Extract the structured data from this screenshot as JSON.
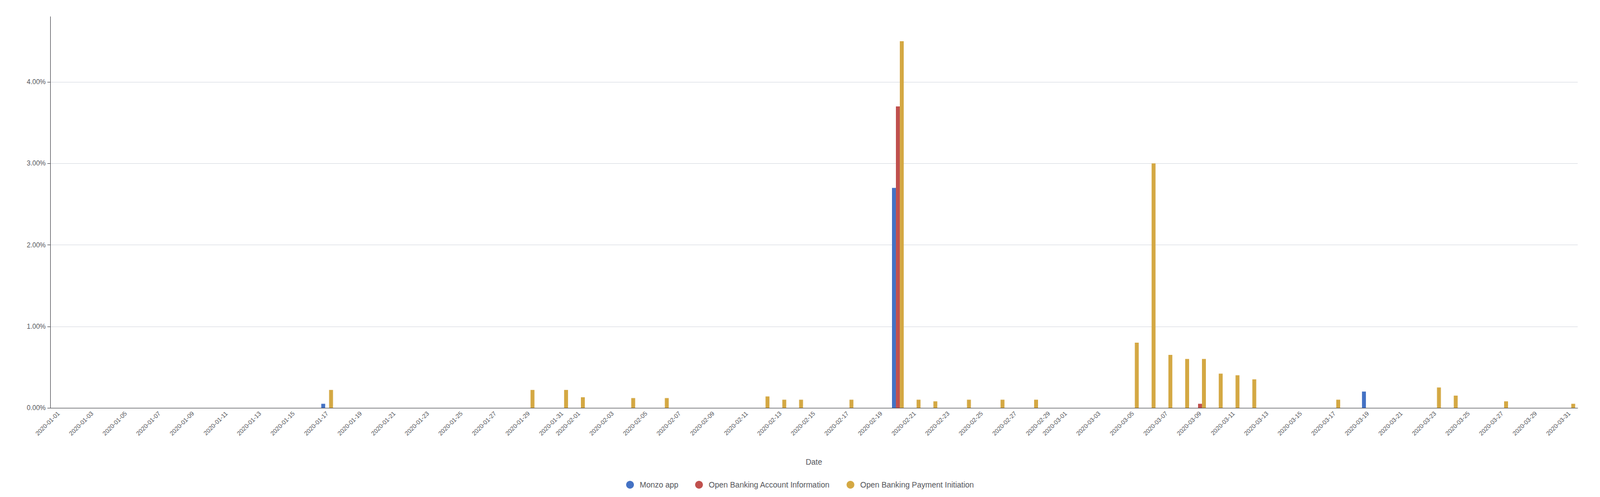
{
  "chart_data": {
    "type": "bar",
    "xlabel": "Date",
    "categories": [
      "2020-01-01",
      null,
      "2020-01-03",
      null,
      "2020-01-05",
      null,
      "2020-01-07",
      null,
      "2020-01-09",
      null,
      "2020-01-11",
      null,
      "2020-01-13",
      null,
      "2020-01-15",
      null,
      "2020-01-17",
      null,
      "2020-01-19",
      null,
      "2020-01-21",
      null,
      "2020-01-23",
      null,
      "2020-01-25",
      null,
      "2020-01-27",
      null,
      "2020-01-29",
      null,
      "2020-01-31",
      "2020-02-01",
      null,
      "2020-02-03",
      null,
      "2020-02-05",
      null,
      "2020-02-07",
      null,
      "2020-02-09",
      null,
      "2020-02-11",
      null,
      "2020-02-13",
      null,
      "2020-02-15",
      null,
      "2020-02-17",
      null,
      "2020-02-19",
      null,
      "2020-02-21",
      null,
      "2020-02-23",
      null,
      "2020-02-25",
      null,
      "2020-02-27",
      null,
      "2020-02-29",
      "2020-03-01",
      null,
      "2020-03-03",
      null,
      "2020-03-05",
      null,
      "2020-03-07",
      null,
      "2020-03-09",
      null,
      "2020-03-11",
      null,
      "2020-03-13",
      null,
      "2020-03-15",
      null,
      "2020-03-17",
      null,
      "2020-03-19",
      null,
      "2020-03-21",
      null,
      "2020-03-23",
      null,
      "2020-03-25",
      null,
      "2020-03-27",
      null,
      "2020-03-29",
      null,
      "2020-03-31"
    ],
    "series": [
      {
        "name": "Monzo app",
        "color": "#4472c4",
        "values": [
          0,
          0,
          0,
          0,
          0,
          0,
          0,
          0,
          0,
          0,
          0,
          0,
          0,
          0,
          0,
          0,
          0.0005,
          0,
          0,
          0,
          0,
          0,
          0,
          0,
          0,
          0,
          0,
          0,
          0,
          0,
          0,
          0,
          0,
          0,
          0,
          0,
          0,
          0,
          0,
          0,
          0,
          0,
          0,
          0,
          0,
          0,
          0,
          0,
          0,
          0,
          0.027,
          0,
          0,
          0,
          0,
          0,
          0,
          0,
          0,
          0,
          0,
          0,
          0,
          0,
          0,
          0,
          0,
          0,
          0,
          0,
          0,
          0,
          0,
          0,
          0,
          0,
          0,
          0,
          0.002,
          0,
          0,
          0,
          0,
          0,
          0,
          0,
          0,
          0,
          0,
          0,
          0
        ]
      },
      {
        "name": "Open Banking Account Information",
        "color": "#c0504d",
        "values": [
          0,
          0,
          0,
          0,
          0,
          0,
          0,
          0,
          0,
          0,
          0,
          0,
          0,
          0,
          0,
          0,
          0,
          0,
          0,
          0,
          0,
          0,
          0,
          0,
          0,
          0,
          0,
          0,
          0,
          0,
          0,
          0,
          0,
          0,
          0,
          0,
          0,
          0,
          0,
          0,
          0,
          0,
          0,
          0,
          0,
          0,
          0,
          0,
          0,
          0,
          0.037,
          0,
          0,
          0,
          0,
          0,
          0,
          0,
          0,
          0,
          0,
          0,
          0,
          0,
          0,
          0,
          0,
          0,
          0.0005,
          0,
          0,
          0,
          0,
          0,
          0,
          0,
          0,
          0,
          0,
          0,
          0,
          0,
          0,
          0,
          0,
          0,
          0,
          0,
          0,
          0,
          0
        ]
      },
      {
        "name": "Open Banking Payment Initiation",
        "color": "#D4A843",
        "values": [
          0,
          0,
          0,
          0,
          0,
          0,
          0,
          0,
          0,
          0,
          0,
          0,
          0,
          0,
          0,
          0,
          0.0022,
          0,
          0,
          0,
          0,
          0,
          0,
          0,
          0,
          0,
          0,
          0,
          0.0022,
          0,
          0.0022,
          0.0013,
          0,
          0,
          0.0012,
          0,
          0.0012,
          0,
          0,
          0,
          0,
          0,
          0.0014,
          0.001,
          0.001,
          0,
          0,
          0.001,
          0,
          0,
          0.045,
          0.001,
          0.0008,
          0,
          0.001,
          0,
          0.001,
          0,
          0.001,
          0,
          0,
          0,
          0,
          0,
          0.008,
          0.03,
          0.0065,
          0.006,
          0.006,
          0.0042,
          0.004,
          0.0035,
          0,
          0,
          0,
          0,
          0.001,
          0,
          0,
          0,
          0,
          0,
          0.0025,
          0.0015,
          0,
          0,
          0.0008,
          0,
          0,
          0,
          0.0005
        ]
      }
    ],
    "ylim": [
      0,
      0.048
    ],
    "yticks": [
      {
        "value": 0.0,
        "label": "0.00%"
      },
      {
        "value": 0.01,
        "label": "1.00%"
      },
      {
        "value": 0.02,
        "label": "2.00%"
      },
      {
        "value": 0.03,
        "label": "3.00%"
      },
      {
        "value": 0.04,
        "label": "4.00%"
      }
    ],
    "grid": true,
    "legend": "bottom"
  }
}
